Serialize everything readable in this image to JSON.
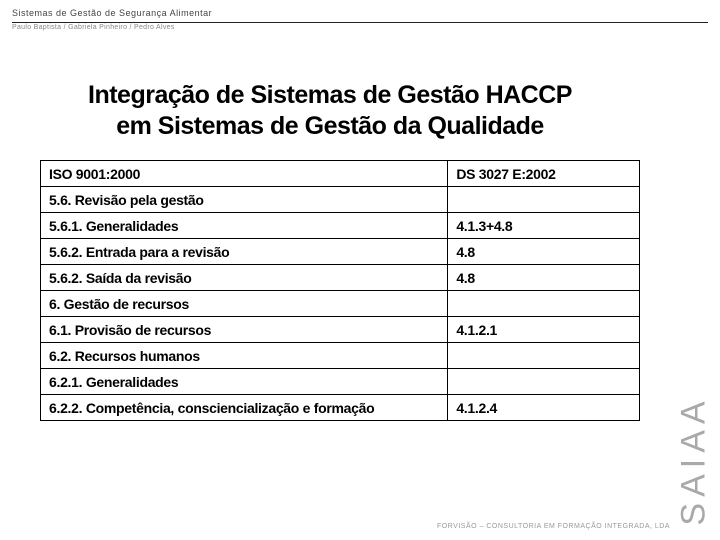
{
  "header": {
    "title": "Sistemas de Gestão de Segurança Alimentar",
    "subtitle": "Paulo Baptista / Gabriela Pinheiro / Pedro Alves"
  },
  "title": {
    "line1": "Integração de Sistemas de Gestão HACCP",
    "line2": "em Sistemas de Gestão da Qualidade"
  },
  "table": {
    "rows": [
      {
        "c1": "ISO 9001:2000",
        "c2": "DS 3027 E:2002"
      },
      {
        "c1": "5.6. Revisão pela gestão",
        "c2": ""
      },
      {
        "c1": "5.6.1. Generalidades",
        "c2": "4.1.3+4.8"
      },
      {
        "c1": "5.6.2. Entrada para a revisão",
        "c2": "4.8"
      },
      {
        "c1": "5.6.2. Saída da revisão",
        "c2": "4.8"
      },
      {
        "c1": "6. Gestão de recursos",
        "c2": ""
      },
      {
        "c1": "6.1. Provisão de recursos",
        "c2": "4.1.2.1"
      },
      {
        "c1": "6.2. Recursos humanos",
        "c2": ""
      },
      {
        "c1": "6.2.1. Generalidades",
        "c2": ""
      },
      {
        "c1": "6.2.2. Competência, consciencialização e formação",
        "c2": "4.1.2.4"
      }
    ]
  },
  "sideBrand": "SAIAA",
  "footer": "FORVISÃO – CONSULTORIA EM FORMAÇÃO INTEGRADA, LDA"
}
